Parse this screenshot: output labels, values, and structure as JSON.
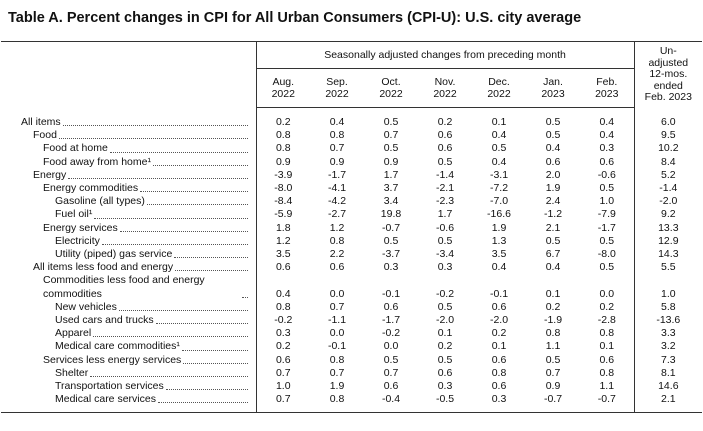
{
  "title": "Table A. Percent changes in CPI for All Urban Consumers (CPI-U): U.S. city average",
  "table": {
    "group_header": "Seasonally adjusted changes from preceding month",
    "columns": [
      [
        "Aug.",
        "2022"
      ],
      [
        "Sep.",
        "2022"
      ],
      [
        "Oct.",
        "2022"
      ],
      [
        "Nov.",
        "2022"
      ],
      [
        "Dec.",
        "2022"
      ],
      [
        "Jan.",
        "2023"
      ],
      [
        "Feb.",
        "2023"
      ],
      [
        "Un-",
        "adjusted",
        "12-mos.",
        "ended",
        "Feb. 2023"
      ]
    ],
    "rows": [
      {
        "label": "All items",
        "values": [
          "0.2",
          "0.4",
          "0.5",
          "0.2",
          "0.1",
          "0.5",
          "0.4",
          "6.0"
        ]
      },
      {
        "label": "Food",
        "values": [
          "0.8",
          "0.8",
          "0.7",
          "0.6",
          "0.4",
          "0.5",
          "0.4",
          "9.5"
        ]
      },
      {
        "label": "Food at home",
        "values": [
          "0.8",
          "0.7",
          "0.5",
          "0.6",
          "0.5",
          "0.4",
          "0.3",
          "10.2"
        ]
      },
      {
        "label": "Food away from home¹",
        "values": [
          "0.9",
          "0.9",
          "0.9",
          "0.5",
          "0.4",
          "0.6",
          "0.6",
          "8.4"
        ]
      },
      {
        "label": "Energy",
        "values": [
          "-3.9",
          "-1.7",
          "1.7",
          "-1.4",
          "-3.1",
          "2.0",
          "-0.6",
          "5.2"
        ]
      },
      {
        "label": "Energy commodities",
        "values": [
          "-8.0",
          "-4.1",
          "3.7",
          "-2.1",
          "-7.2",
          "1.9",
          "0.5",
          "-1.4"
        ]
      },
      {
        "label": "Gasoline (all types)",
        "values": [
          "-8.4",
          "-4.2",
          "3.4",
          "-2.3",
          "-7.0",
          "2.4",
          "1.0",
          "-2.0"
        ]
      },
      {
        "label": "Fuel oil¹",
        "values": [
          "-5.9",
          "-2.7",
          "19.8",
          "1.7",
          "-16.6",
          "-1.2",
          "-7.9",
          "9.2"
        ]
      },
      {
        "label": "Energy services",
        "values": [
          "1.8",
          "1.2",
          "-0.7",
          "-0.6",
          "1.9",
          "2.1",
          "-1.7",
          "13.3"
        ]
      },
      {
        "label": "Electricity",
        "values": [
          "1.2",
          "0.8",
          "0.5",
          "0.5",
          "1.3",
          "0.5",
          "0.5",
          "12.9"
        ]
      },
      {
        "label": "Utility (piped) gas service",
        "values": [
          "3.5",
          "2.2",
          "-3.7",
          "-3.4",
          "3.5",
          "6.7",
          "-8.0",
          "14.3"
        ]
      },
      {
        "label": "All items less food and energy",
        "values": [
          "0.6",
          "0.6",
          "0.3",
          "0.3",
          "0.4",
          "0.4",
          "0.5",
          "5.5"
        ]
      },
      {
        "label": "Commodities less food and energy commodities",
        "values": [
          "0.4",
          "0.0",
          "-0.1",
          "-0.2",
          "-0.1",
          "0.1",
          "0.0",
          "1.0"
        ]
      },
      {
        "label": "New vehicles",
        "values": [
          "0.8",
          "0.7",
          "0.6",
          "0.5",
          "0.6",
          "0.2",
          "0.2",
          "5.8"
        ]
      },
      {
        "label": "Used cars and trucks",
        "values": [
          "-0.2",
          "-1.1",
          "-1.7",
          "-2.0",
          "-2.0",
          "-1.9",
          "-2.8",
          "-13.6"
        ]
      },
      {
        "label": "Apparel",
        "values": [
          "0.3",
          "0.0",
          "-0.2",
          "0.1",
          "0.2",
          "0.8",
          "0.8",
          "3.3"
        ]
      },
      {
        "label": "Medical care commodities¹",
        "values": [
          "0.2",
          "-0.1",
          "0.0",
          "0.2",
          "0.1",
          "1.1",
          "0.1",
          "3.2"
        ]
      },
      {
        "label": "Services less energy services",
        "values": [
          "0.6",
          "0.8",
          "0.5",
          "0.5",
          "0.6",
          "0.5",
          "0.6",
          "7.3"
        ]
      },
      {
        "label": "Shelter",
        "values": [
          "0.7",
          "0.7",
          "0.7",
          "0.6",
          "0.8",
          "0.7",
          "0.8",
          "8.1"
        ]
      },
      {
        "label": "Transportation services",
        "values": [
          "1.0",
          "1.9",
          "0.6",
          "0.3",
          "0.6",
          "0.9",
          "1.1",
          "14.6"
        ]
      },
      {
        "label": "Medical care services",
        "values": [
          "0.7",
          "0.8",
          "-0.4",
          "-0.5",
          "0.3",
          "-0.7",
          "-0.7",
          "2.1"
        ]
      }
    ]
  }
}
